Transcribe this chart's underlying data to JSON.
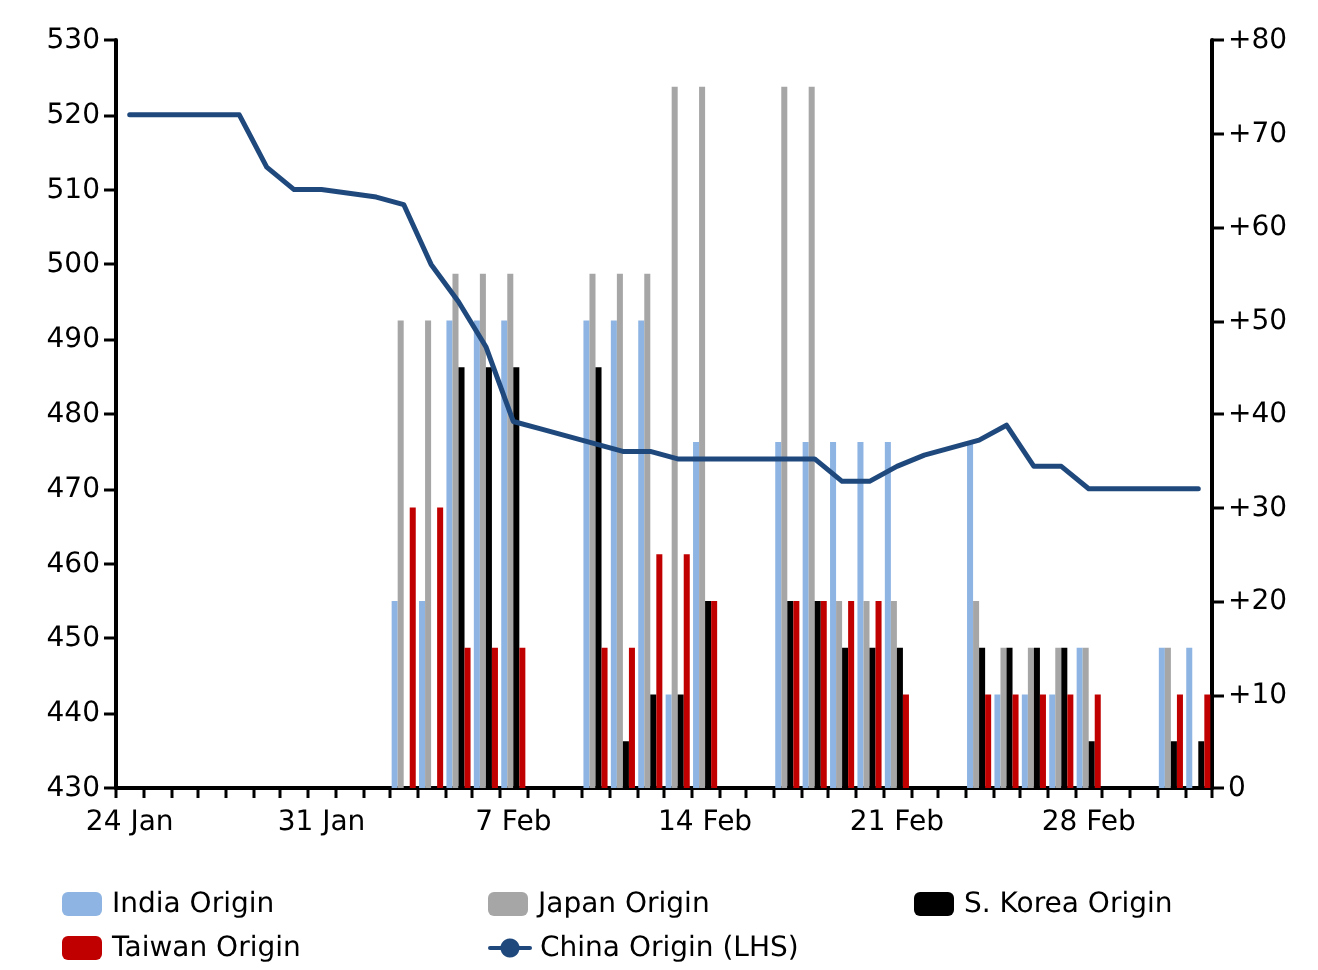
{
  "chart_data": {
    "type": "bar",
    "categories": [
      "24 Jan",
      null,
      null,
      null,
      null,
      null,
      null,
      "31 Jan",
      null,
      null,
      null,
      null,
      null,
      null,
      "7 Feb",
      null,
      null,
      null,
      null,
      null,
      null,
      "14 Feb",
      null,
      null,
      null,
      null,
      null,
      null,
      "21 Feb",
      null,
      null,
      null,
      null,
      null,
      null,
      "28 Feb",
      null,
      null,
      null,
      null
    ],
    "series": [
      {
        "name": "India Origin",
        "color": "#8db4e2",
        "axis": "y2",
        "values": [
          null,
          null,
          null,
          null,
          null,
          null,
          null,
          null,
          null,
          null,
          20,
          20,
          50,
          50,
          50,
          null,
          null,
          50,
          50,
          50,
          10,
          37,
          null,
          null,
          37,
          37,
          37,
          37,
          37,
          null,
          null,
          37,
          10,
          10,
          10,
          15,
          null,
          null,
          15,
          15
        ]
      },
      {
        "name": "Japan Origin",
        "color": "#a6a6a6",
        "axis": "y2",
        "values": [
          null,
          null,
          null,
          null,
          null,
          null,
          null,
          null,
          null,
          null,
          50,
          50,
          55,
          55,
          55,
          null,
          null,
          55,
          55,
          55,
          75,
          75,
          null,
          null,
          75,
          75,
          20,
          20,
          20,
          null,
          null,
          20,
          15,
          15,
          15,
          15,
          null,
          null,
          15,
          null
        ]
      },
      {
        "name": "S. Korea Origin",
        "color": "#000000",
        "axis": "y2",
        "values": [
          null,
          null,
          null,
          null,
          null,
          null,
          null,
          null,
          null,
          null,
          null,
          null,
          45,
          45,
          45,
          null,
          null,
          45,
          5,
          10,
          10,
          20,
          null,
          null,
          20,
          20,
          15,
          15,
          15,
          null,
          null,
          15,
          15,
          15,
          15,
          5,
          null,
          null,
          5,
          5
        ]
      },
      {
        "name": "Taiwan Origin",
        "color": "#c00000",
        "axis": "y2",
        "values": [
          null,
          null,
          null,
          null,
          null,
          null,
          null,
          null,
          null,
          null,
          30,
          30,
          15,
          15,
          15,
          null,
          null,
          15,
          15,
          25,
          25,
          20,
          null,
          null,
          20,
          20,
          20,
          20,
          10,
          null,
          null,
          10,
          10,
          10,
          10,
          10,
          null,
          null,
          10,
          10
        ]
      },
      {
        "name": "China Origin (LHS)",
        "type": "line",
        "color": "#1f497d",
        "values": [
          520,
          520,
          520,
          520,
          520,
          513,
          510,
          510,
          509.5,
          509,
          508,
          500,
          495,
          489,
          479,
          478,
          477,
          476,
          475,
          475,
          474,
          474,
          474,
          474,
          474,
          474,
          471,
          471,
          473,
          474.5,
          475.5,
          476.5,
          478.5,
          473,
          473,
          470,
          470,
          470,
          470,
          470
        ]
      }
    ],
    "ylim": [
      430,
      530
    ],
    "yticks": [
      430,
      440,
      450,
      460,
      470,
      480,
      490,
      500,
      510,
      520,
      530
    ],
    "y2lim": [
      0,
      80
    ],
    "y2ticks": [
      0,
      {
        "value": 10,
        "label": "+10"
      },
      {
        "value": 20,
        "label": "+20"
      },
      {
        "value": 30,
        "label": "+30"
      },
      {
        "value": 40,
        "label": "+40"
      },
      {
        "value": 50,
        "label": "+50"
      },
      {
        "value": 60,
        "label": "+60"
      },
      {
        "value": 70,
        "label": "+70"
      },
      {
        "value": 80,
        "label": "+80"
      }
    ],
    "grid": false,
    "legend": "bottom",
    "marker": "none",
    "line_style": "solid"
  }
}
